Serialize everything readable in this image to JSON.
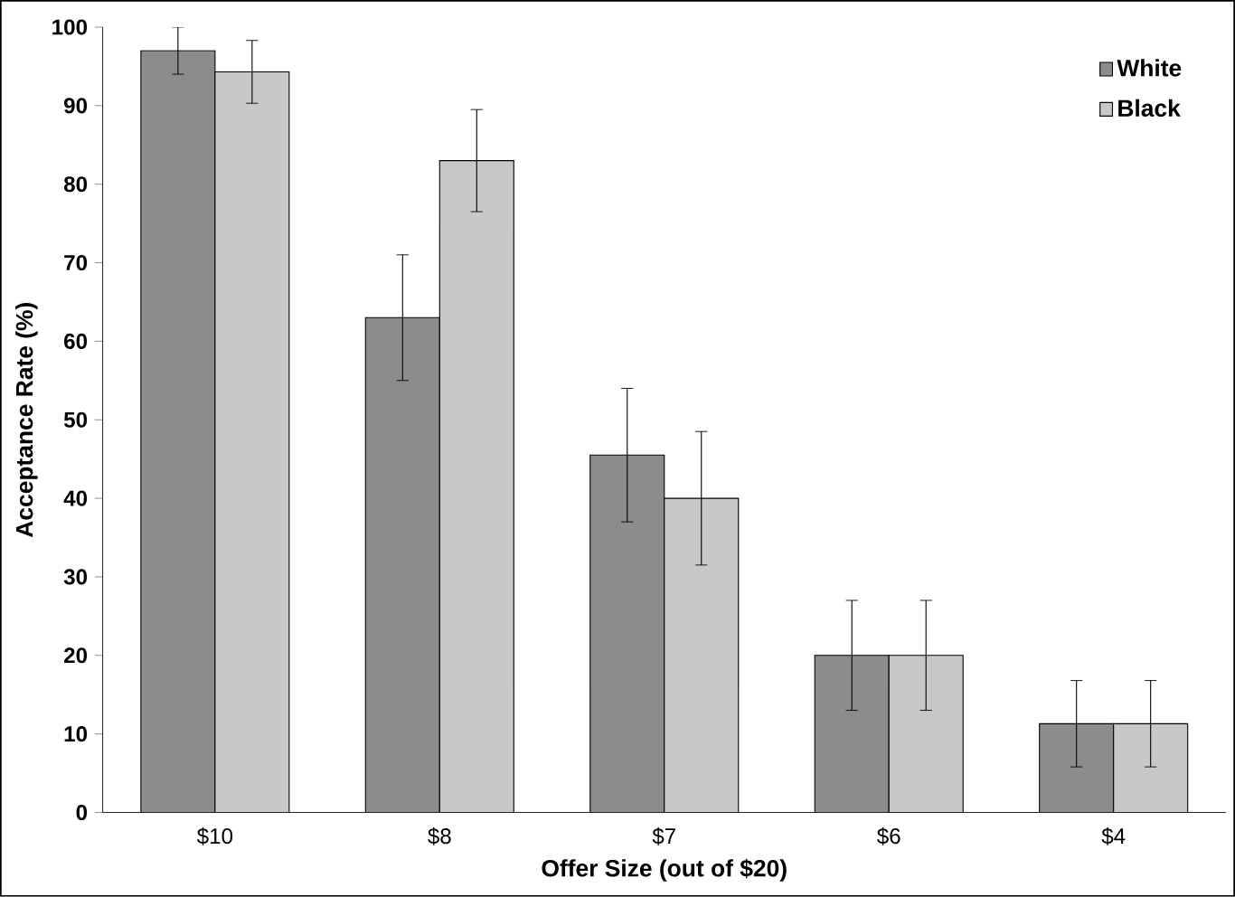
{
  "chart_data": {
    "type": "bar",
    "xlabel": "Offer Size (out of $20)",
    "ylabel": "Acceptance Rate (%)",
    "categories": [
      "$10",
      "$8",
      "$7",
      "$6",
      "$4"
    ],
    "series": [
      {
        "name": "White",
        "color": "#8c8c8c",
        "values": [
          97,
          63,
          45.5,
          20,
          11.3
        ],
        "errors": [
          3,
          8,
          8.5,
          7,
          5.5
        ]
      },
      {
        "name": "Black",
        "color": "#c8c8c8",
        "values": [
          94.3,
          83,
          40,
          20,
          11.3
        ],
        "errors": [
          4,
          6.5,
          8.5,
          7,
          5.5
        ]
      }
    ],
    "ylim": [
      0,
      100
    ],
    "yticks": [
      0,
      10,
      20,
      30,
      40,
      50,
      60,
      70,
      80,
      90,
      100
    ],
    "grid": false,
    "legend": "top right"
  }
}
